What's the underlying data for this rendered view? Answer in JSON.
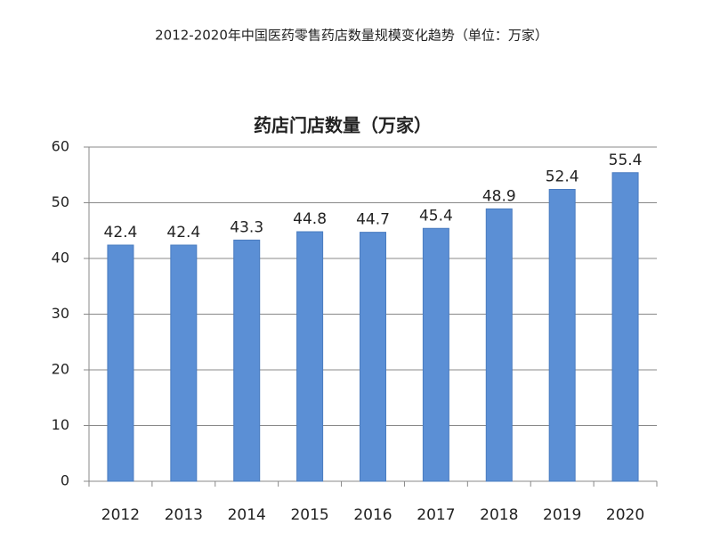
{
  "page_title": "2012-2020年中国医药零售药店数量规模变化趋势（单位：万家）",
  "chart_data": {
    "type": "bar",
    "title": "药店门店数量（万家）",
    "categories": [
      "2012",
      "2013",
      "2014",
      "2015",
      "2016",
      "2017",
      "2018",
      "2019",
      "2020"
    ],
    "values": [
      42.4,
      42.4,
      43.3,
      44.8,
      44.7,
      45.4,
      48.9,
      52.4,
      55.4
    ],
    "color": "#5b8fd5",
    "ylim": [
      0,
      60
    ],
    "yticks": [
      0,
      10,
      20,
      30,
      40,
      50,
      60
    ],
    "grid": true
  }
}
